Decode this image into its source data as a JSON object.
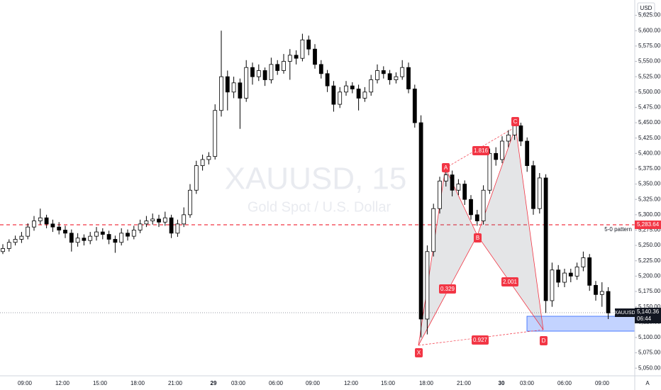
{
  "chart_data": {
    "type": "candlestick",
    "watermark": "XAUUSD, 15",
    "subtitle": "Gold Spot / U.S. Dollar",
    "currency": "USD",
    "corner_label": "A",
    "up_color": "#ffffff",
    "down_color": "#000000",
    "outline_color": "#000000",
    "ylim": [
      5037.5,
      5650
    ],
    "yticks": [
      {
        "value": 5050,
        "label": "5,050.00"
      },
      {
        "value": 5075,
        "label": "5,075.00"
      },
      {
        "value": 5100,
        "label": "5,100.00"
      },
      {
        "value": 5125,
        "label": "5,125.00"
      },
      {
        "value": 5150,
        "label": "5,150.00"
      },
      {
        "value": 5175,
        "label": "5,175.00"
      },
      {
        "value": 5200,
        "label": "5,200.00"
      },
      {
        "value": 5225,
        "label": "5,225.00"
      },
      {
        "value": 5250,
        "label": "5,250.00"
      },
      {
        "value": 5275,
        "label": "5,275.00"
      },
      {
        "value": 5300,
        "label": "5,300.00"
      },
      {
        "value": 5325,
        "label": "5,325.00"
      },
      {
        "value": 5350,
        "label": "5,350.00"
      },
      {
        "value": 5375,
        "label": "5,375.00"
      },
      {
        "value": 5400,
        "label": "5,400.00"
      },
      {
        "value": 5425,
        "label": "5,425.00"
      },
      {
        "value": 5450,
        "label": "5,450.00"
      },
      {
        "value": 5475,
        "label": "5,475.00"
      },
      {
        "value": 5500,
        "label": "5,500.00"
      },
      {
        "value": 5525,
        "label": "5,525.00"
      },
      {
        "value": 5550,
        "label": "5,550.00"
      },
      {
        "value": 5575,
        "label": "5,575.00"
      },
      {
        "value": 5600,
        "label": "5,600.00"
      },
      {
        "value": 5625,
        "label": "5,625.00"
      }
    ],
    "xticks": [
      "09:00",
      "12:00",
      "15:00",
      "18:00",
      "21:00",
      "29",
      "03:00",
      "06:00",
      "09:00",
      "12:00",
      "15:00",
      "18:00",
      "21:00",
      "30",
      "03:00",
      "06:00",
      "09:00"
    ],
    "hline": {
      "value": 5283.64,
      "label": "5,283.64",
      "name": "5-0 pattern",
      "color": "#f23645"
    },
    "last_price": {
      "value": 5140.36,
      "label": "5,140.36",
      "symbol": "XAUUSD",
      "countdown": "06:44"
    },
    "pattern": {
      "points": [
        "X",
        "A",
        "B",
        "C",
        "D"
      ],
      "ratios": [
        "0.329",
        "1.816",
        "2.001",
        "0.927"
      ]
    },
    "candles": [
      [
        5240,
        5252,
        5236,
        5245
      ],
      [
        5245,
        5260,
        5240,
        5255
      ],
      [
        5255,
        5266,
        5250,
        5260
      ],
      [
        5260,
        5272,
        5254,
        5265
      ],
      [
        5265,
        5286,
        5260,
        5280
      ],
      [
        5280,
        5298,
        5274,
        5290
      ],
      [
        5290,
        5310,
        5284,
        5295
      ],
      [
        5295,
        5300,
        5278,
        5285
      ],
      [
        5285,
        5292,
        5272,
        5280
      ],
      [
        5280,
        5288,
        5268,
        5275
      ],
      [
        5275,
        5282,
        5262,
        5270
      ],
      [
        5270,
        5276,
        5240,
        5255
      ],
      [
        5255,
        5270,
        5248,
        5262
      ],
      [
        5262,
        5268,
        5250,
        5258
      ],
      [
        5258,
        5272,
        5252,
        5265
      ],
      [
        5265,
        5280,
        5258,
        5272
      ],
      [
        5272,
        5278,
        5260,
        5268
      ],
      [
        5268,
        5274,
        5252,
        5260
      ],
      [
        5260,
        5266,
        5238,
        5255
      ],
      [
        5255,
        5278,
        5250,
        5270
      ],
      [
        5270,
        5276,
        5258,
        5265
      ],
      [
        5265,
        5282,
        5260,
        5275
      ],
      [
        5275,
        5292,
        5270,
        5285
      ],
      [
        5285,
        5298,
        5280,
        5290
      ],
      [
        5290,
        5302,
        5284,
        5293
      ],
      [
        5293,
        5300,
        5280,
        5288
      ],
      [
        5288,
        5305,
        5282,
        5295
      ],
      [
        5295,
        5300,
        5262,
        5270
      ],
      [
        5270,
        5292,
        5264,
        5285
      ],
      [
        5285,
        5312,
        5280,
        5300
      ],
      [
        5300,
        5350,
        5295,
        5340
      ],
      [
        5340,
        5388,
        5334,
        5380
      ],
      [
        5380,
        5398,
        5372,
        5390
      ],
      [
        5390,
        5402,
        5382,
        5395
      ],
      [
        5395,
        5480,
        5390,
        5470
      ],
      [
        5470,
        5600,
        5460,
        5525
      ],
      [
        5525,
        5535,
        5470,
        5500
      ],
      [
        5500,
        5525,
        5490,
        5515
      ],
      [
        5515,
        5522,
        5440,
        5490
      ],
      [
        5490,
        5552,
        5484,
        5540
      ],
      [
        5540,
        5548,
        5512,
        5525
      ],
      [
        5525,
        5545,
        5518,
        5535
      ],
      [
        5535,
        5540,
        5510,
        5520
      ],
      [
        5520,
        5556,
        5514,
        5545
      ],
      [
        5545,
        5552,
        5528,
        5535
      ],
      [
        5535,
        5562,
        5530,
        5550
      ],
      [
        5550,
        5570,
        5520,
        5560
      ],
      [
        5560,
        5568,
        5545,
        5555
      ],
      [
        5555,
        5595,
        5550,
        5585
      ],
      [
        5585,
        5592,
        5560,
        5570
      ],
      [
        5570,
        5578,
        5538,
        5545
      ],
      [
        5545,
        5552,
        5522,
        5530
      ],
      [
        5530,
        5536,
        5500,
        5510
      ],
      [
        5510,
        5518,
        5468,
        5480
      ],
      [
        5480,
        5508,
        5474,
        5500
      ],
      [
        5500,
        5518,
        5494,
        5510
      ],
      [
        5510,
        5516,
        5498,
        5505
      ],
      [
        5505,
        5512,
        5470,
        5490
      ],
      [
        5490,
        5508,
        5484,
        5500
      ],
      [
        5500,
        5528,
        5494,
        5520
      ],
      [
        5520,
        5545,
        5514,
        5535
      ],
      [
        5535,
        5542,
        5522,
        5530
      ],
      [
        5530,
        5536,
        5512,
        5520
      ],
      [
        5520,
        5532,
        5514,
        5525
      ],
      [
        5525,
        5552,
        5520,
        5540
      ],
      [
        5540,
        5548,
        5498,
        5505
      ],
      [
        5505,
        5512,
        5442,
        5450
      ],
      [
        5450,
        5462,
        5100,
        5130
      ],
      [
        5130,
        5250,
        5105,
        5240
      ],
      [
        5240,
        5318,
        5232,
        5310
      ],
      [
        5310,
        5362,
        5302,
        5355
      ],
      [
        5355,
        5375,
        5346,
        5365
      ],
      [
        5365,
        5372,
        5330,
        5340
      ],
      [
        5340,
        5358,
        5332,
        5350
      ],
      [
        5350,
        5356,
        5316,
        5325
      ],
      [
        5325,
        5332,
        5292,
        5300
      ],
      [
        5300,
        5308,
        5282,
        5290
      ],
      [
        5290,
        5348,
        5284,
        5340
      ],
      [
        5340,
        5408,
        5334,
        5400
      ],
      [
        5400,
        5410,
        5380,
        5390
      ],
      [
        5390,
        5428,
        5384,
        5420
      ],
      [
        5420,
        5438,
        5410,
        5430
      ],
      [
        5430,
        5452,
        5422,
        5445
      ],
      [
        5445,
        5450,
        5412,
        5420
      ],
      [
        5420,
        5426,
        5370,
        5380
      ],
      [
        5380,
        5388,
        5300,
        5310
      ],
      [
        5310,
        5368,
        5302,
        5360
      ],
      [
        5360,
        5366,
        5140,
        5160
      ],
      [
        5160,
        5222,
        5150,
        5210
      ],
      [
        5210,
        5218,
        5182,
        5190
      ],
      [
        5190,
        5212,
        5182,
        5205
      ],
      [
        5205,
        5212,
        5190,
        5200
      ],
      [
        5200,
        5222,
        5194,
        5215
      ],
      [
        5215,
        5240,
        5208,
        5230
      ],
      [
        5230,
        5236,
        5176,
        5185
      ],
      [
        5185,
        5192,
        5160,
        5170
      ],
      [
        5170,
        5190,
        5150,
        5175
      ],
      [
        5175,
        5182,
        5130,
        5140
      ]
    ]
  }
}
